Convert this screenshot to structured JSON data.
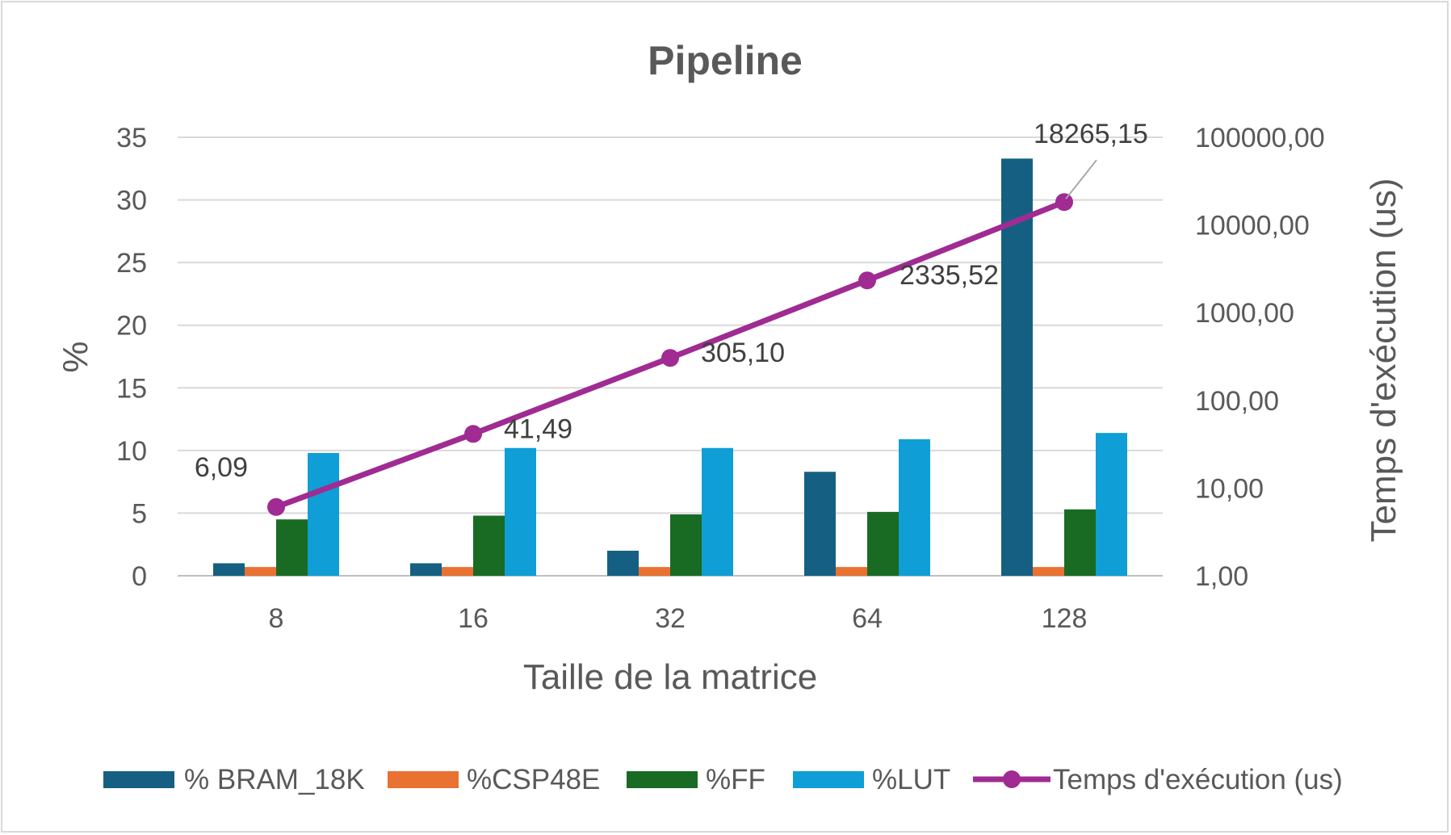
{
  "chart_data": {
    "type": "bar",
    "title": "Pipeline",
    "xlabel": "Taille de la matrice",
    "ylabel": "%",
    "y2label": "Temps d'exécution (us)",
    "categories": [
      "8",
      "16",
      "32",
      "64",
      "128"
    ],
    "ylim": [
      0,
      35
    ],
    "y_ticks": [
      "0",
      "5",
      "10",
      "15",
      "20",
      "25",
      "30",
      "35"
    ],
    "y2_scale": "log10",
    "y2lim": [
      1,
      100000
    ],
    "y2_ticks": [
      "1,00",
      "10,00",
      "100,00",
      "1000,00",
      "10000,00",
      "100000,00"
    ],
    "grid": true,
    "legend_position": "bottom",
    "series": [
      {
        "name": "% BRAM_18K",
        "type": "bar",
        "axis": "left",
        "color": "#156082",
        "values": [
          1.0,
          1.0,
          2.0,
          8.3,
          33.3
        ]
      },
      {
        "name": "%CSP48E",
        "type": "bar",
        "axis": "left",
        "color": "#E97132",
        "values": [
          0.7,
          0.7,
          0.7,
          0.7,
          0.7
        ]
      },
      {
        "name": "%FF",
        "type": "bar",
        "axis": "left",
        "color": "#196B24",
        "values": [
          4.5,
          4.8,
          4.9,
          5.1,
          5.3
        ]
      },
      {
        "name": "%LUT",
        "type": "bar",
        "axis": "left",
        "color": "#0F9ED5",
        "values": [
          9.8,
          10.2,
          10.2,
          10.9,
          11.4
        ]
      },
      {
        "name": "Temps d'exécution (us)",
        "type": "line",
        "axis": "right",
        "color": "#A02B93",
        "values": [
          6.09,
          41.49,
          305.1,
          2335.52,
          18265.15
        ],
        "labels": [
          "6,09",
          "41,49",
          "305,10",
          "2335,52",
          "18265,15"
        ]
      }
    ]
  }
}
